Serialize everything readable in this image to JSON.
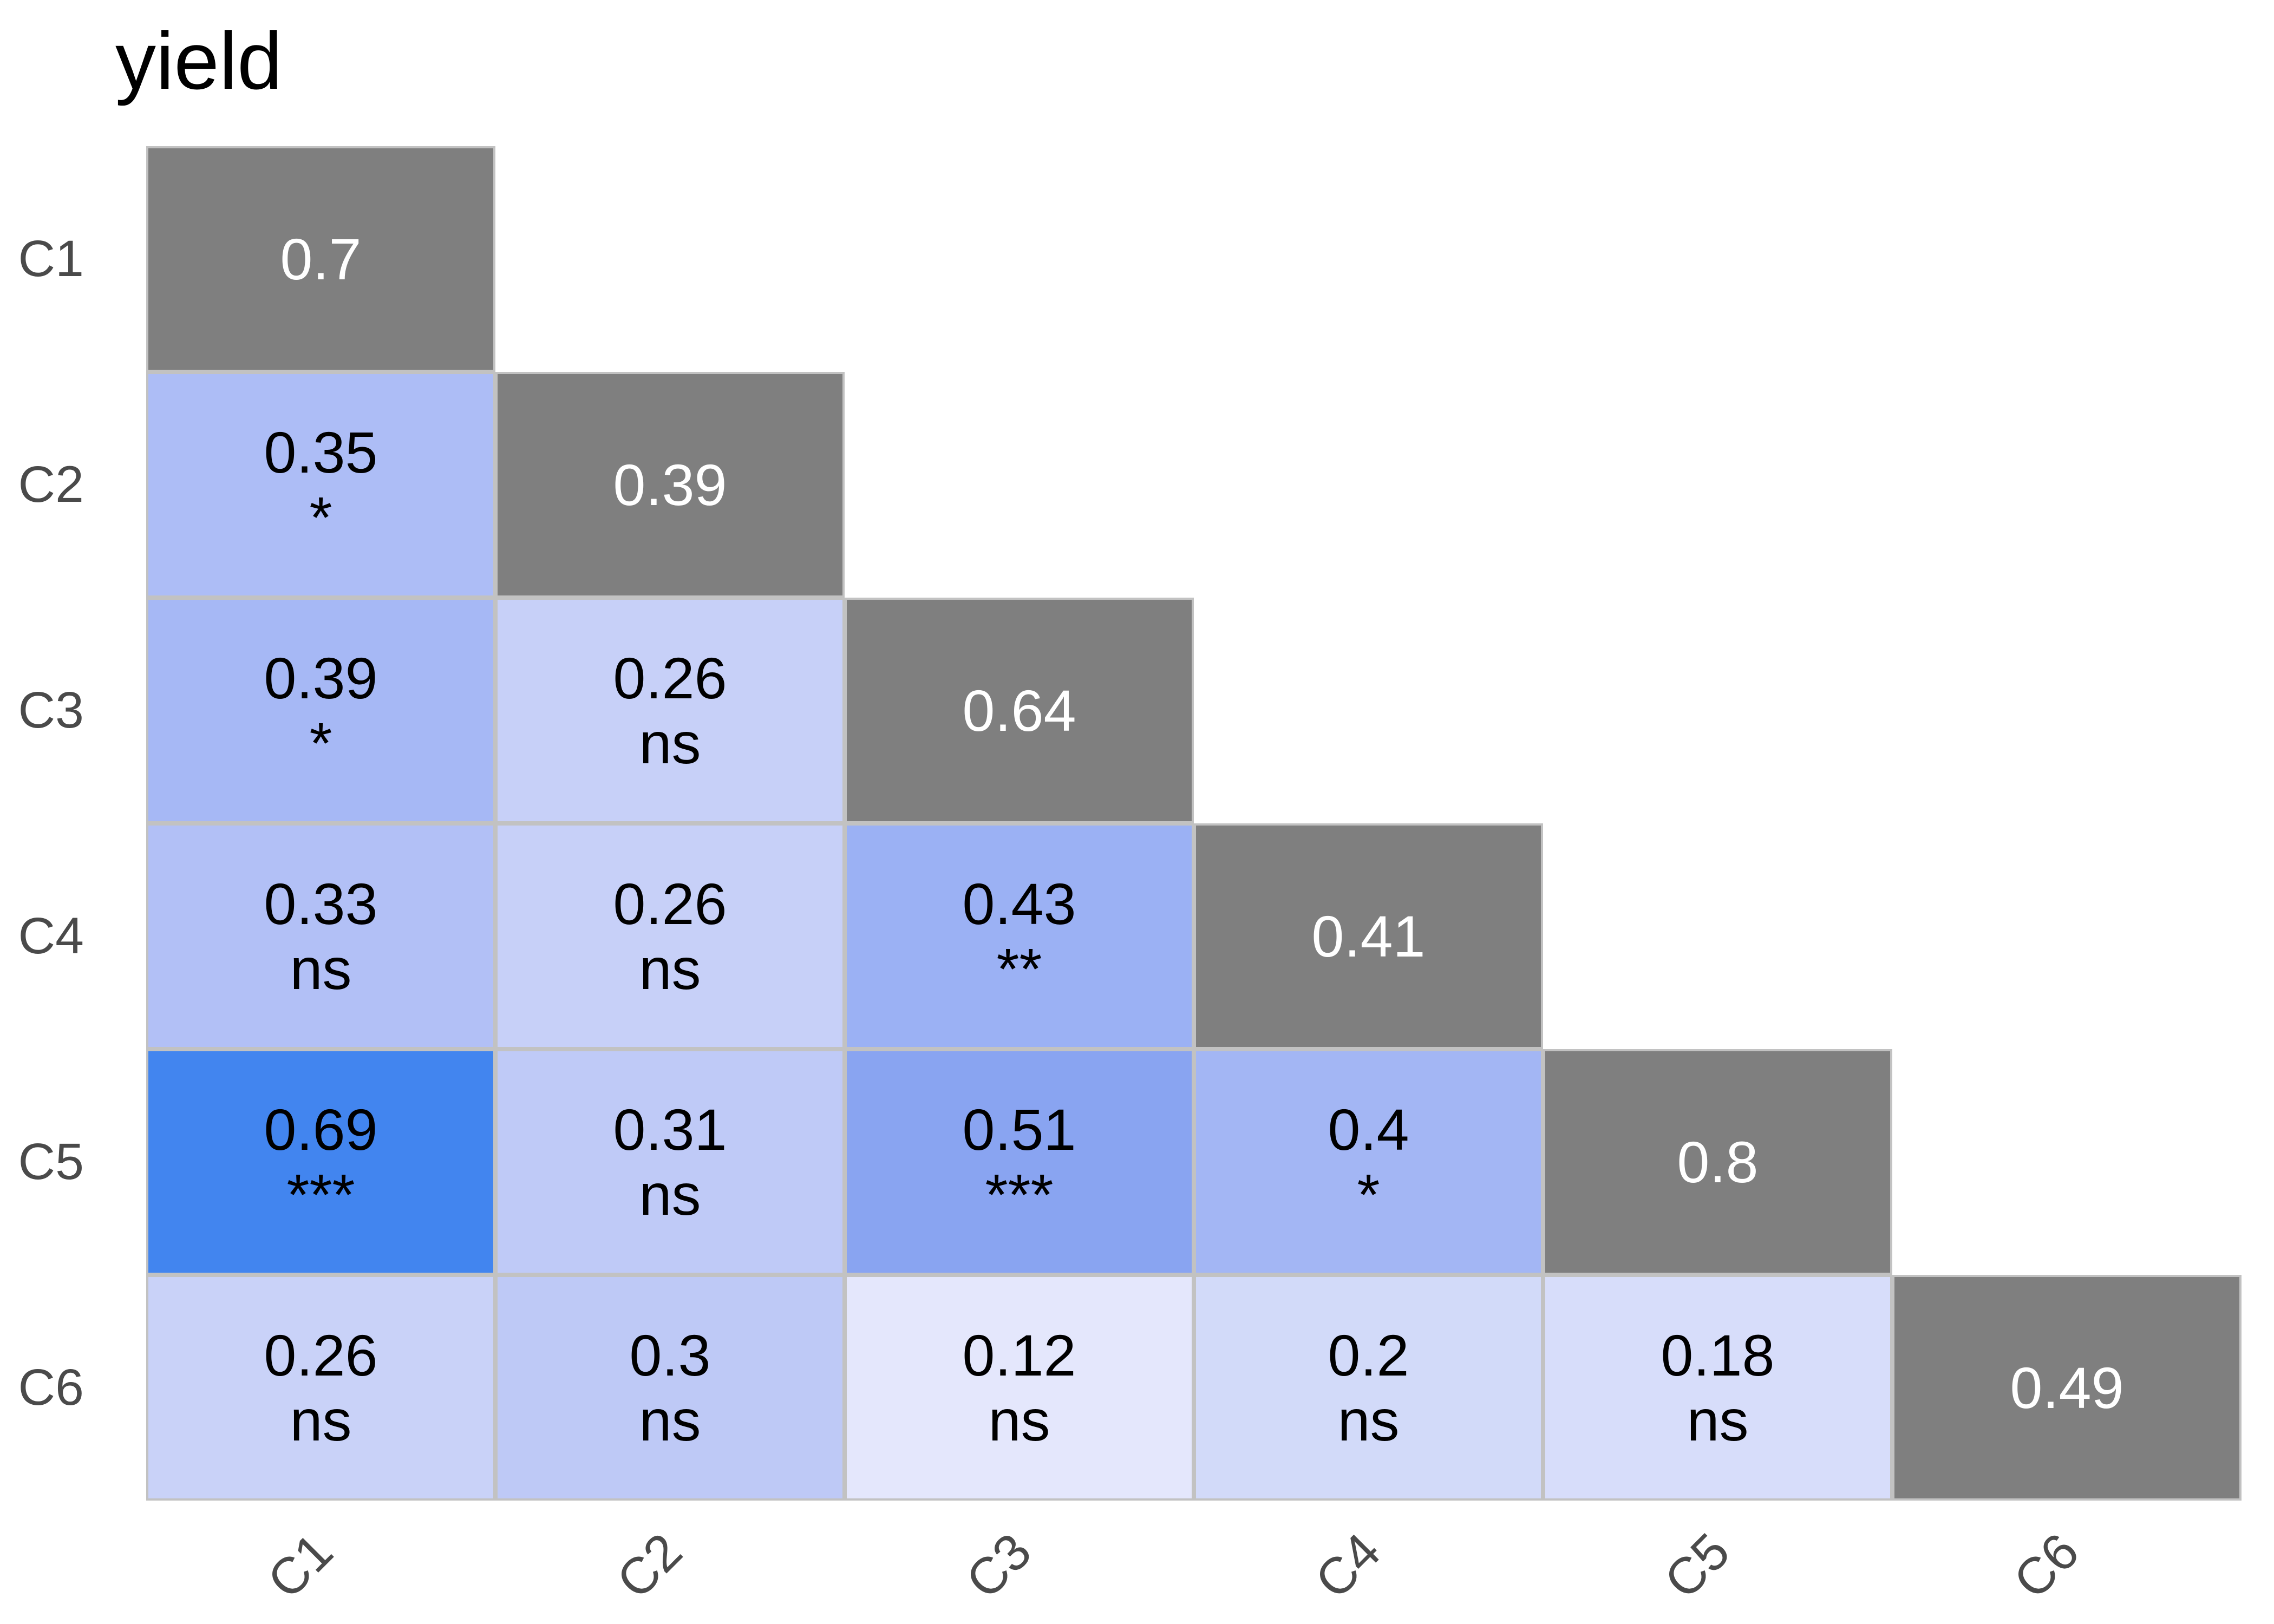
{
  "title": "yield",
  "variables": [
    "C1",
    "C2",
    "C3",
    "C4",
    "C5",
    "C6"
  ],
  "colors": {
    "background": "#ffffff",
    "title_text": "#000000",
    "axis_label": "#4a4a4a",
    "cell_border": "#c2c2c2",
    "cell_text": "#000000",
    "diagonal_fill": "#7f7f7f",
    "diagonal_text": "#ffffff"
  },
  "chart_data": {
    "type": "heatmap",
    "subtype": "correlation-matrix-lower-triangle",
    "title": "yield",
    "x_labels": [
      "C1",
      "C2",
      "C3",
      "C4",
      "C5",
      "C6"
    ],
    "y_labels": [
      "C1",
      "C2",
      "C3",
      "C4",
      "C5",
      "C6"
    ],
    "legend": "none",
    "significance_values": [
      "ns",
      "*",
      "**",
      "***"
    ],
    "diagonal": [
      {
        "var": "C1",
        "value": 0.7,
        "fill": "#7f7f7f"
      },
      {
        "var": "C2",
        "value": 0.39,
        "fill": "#7f7f7f"
      },
      {
        "var": "C3",
        "value": 0.64,
        "fill": "#7f7f7f"
      },
      {
        "var": "C4",
        "value": 0.41,
        "fill": "#7f7f7f"
      },
      {
        "var": "C5",
        "value": 0.8,
        "fill": "#7f7f7f"
      },
      {
        "var": "C6",
        "value": 0.49,
        "fill": "#7f7f7f"
      }
    ],
    "cells": [
      {
        "row": "C2",
        "col": "C1",
        "value": 0.35,
        "significance": "*",
        "fill": "#adbdf6"
      },
      {
        "row": "C3",
        "col": "C1",
        "value": 0.39,
        "significance": "*",
        "fill": "#a6b8f5"
      },
      {
        "row": "C3",
        "col": "C2",
        "value": 0.26,
        "significance": "ns",
        "fill": "#c7d0f8"
      },
      {
        "row": "C4",
        "col": "C1",
        "value": 0.33,
        "significance": "ns",
        "fill": "#b2c0f6"
      },
      {
        "row": "C4",
        "col": "C2",
        "value": 0.26,
        "significance": "ns",
        "fill": "#c7d0f8"
      },
      {
        "row": "C4",
        "col": "C3",
        "value": 0.43,
        "significance": "**",
        "fill": "#9bb1f4"
      },
      {
        "row": "C5",
        "col": "C1",
        "value": 0.69,
        "significance": "***",
        "fill": "#4285ef"
      },
      {
        "row": "C5",
        "col": "C2",
        "value": 0.31,
        "significance": "ns",
        "fill": "#bfcaf7"
      },
      {
        "row": "C5",
        "col": "C3",
        "value": 0.51,
        "significance": "***",
        "fill": "#89a4f1"
      },
      {
        "row": "C5",
        "col": "C4",
        "value": 0.4,
        "significance": "*",
        "fill": "#a3b6f4"
      },
      {
        "row": "C6",
        "col": "C1",
        "value": 0.26,
        "significance": "ns",
        "fill": "#c9d2f8"
      },
      {
        "row": "C6",
        "col": "C2",
        "value": 0.3,
        "significance": "ns",
        "fill": "#bec9f6"
      },
      {
        "row": "C6",
        "col": "C3",
        "value": 0.12,
        "significance": "ns",
        "fill": "#e4e7fc"
      },
      {
        "row": "C6",
        "col": "C4",
        "value": 0.2,
        "significance": "ns",
        "fill": "#d2daf9"
      },
      {
        "row": "C6",
        "col": "C5",
        "value": 0.18,
        "significance": "ns",
        "fill": "#d7ddfa"
      }
    ]
  }
}
